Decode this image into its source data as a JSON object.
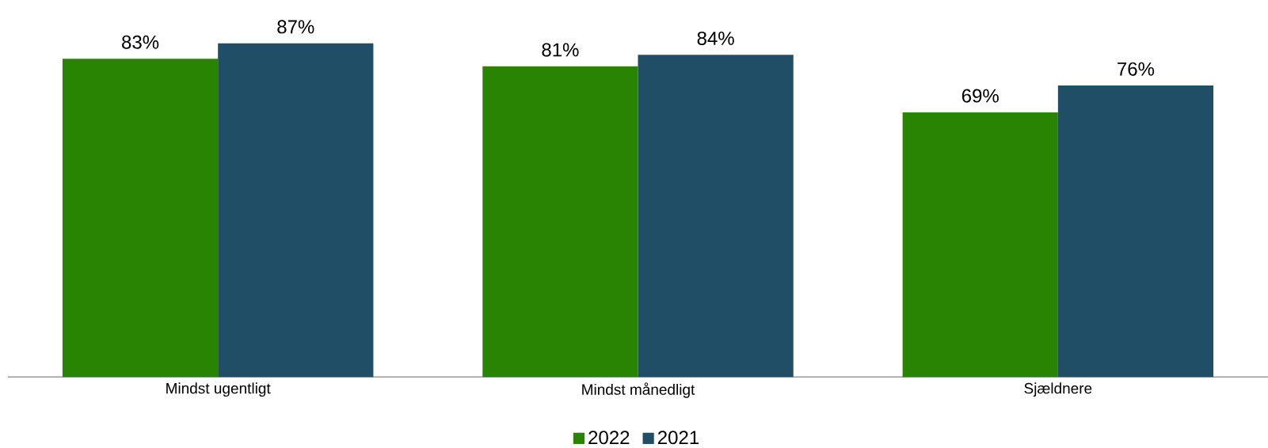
{
  "chart_data": {
    "type": "bar",
    "categories": [
      "Mindst ugentligt",
      "Mindst månedligt",
      "Sjældnere"
    ],
    "series": [
      {
        "name": "2022",
        "color": "#2a8404",
        "values": [
          83,
          81,
          69
        ],
        "value_labels": [
          "83%",
          "81%",
          "69%"
        ]
      },
      {
        "name": "2021",
        "color": "#1f4e66",
        "values": [
          87,
          84,
          76
        ],
        "value_labels": [
          "87%",
          "84%",
          "76%"
        ]
      }
    ],
    "tick_labels": "x",
    "legend": "bottom"
  }
}
